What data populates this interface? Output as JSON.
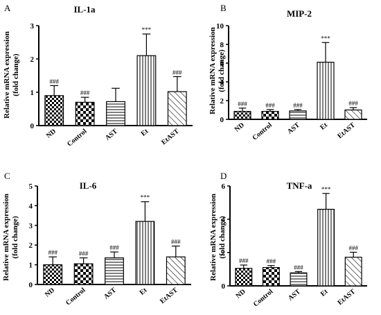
{
  "chart_data": [
    {
      "panel": "A",
      "type": "bar",
      "title": "IL-1a",
      "ylabel": [
        "Relative mRNA expression",
        "(fold change)"
      ],
      "categories": [
        "ND",
        "Control",
        "AST",
        "Et",
        "EtAST"
      ],
      "values": [
        0.9,
        0.7,
        0.72,
        2.1,
        1.02
      ],
      "errors": [
        0.3,
        0.15,
        0.4,
        0.65,
        0.45
      ],
      "annotations": [
        "###",
        "###",
        "",
        "***",
        "###"
      ],
      "ylim": [
        0,
        3
      ],
      "yticks": [
        0,
        1,
        2,
        3
      ]
    },
    {
      "panel": "B",
      "type": "bar",
      "title": "MIP-2",
      "ylabel": [
        "Relative mRNA expression",
        "(fold change)"
      ],
      "categories": [
        "ND",
        "Control",
        "AST",
        "Et",
        "EtAST"
      ],
      "values": [
        0.85,
        0.85,
        0.9,
        6.1,
        1.0
      ],
      "errors": [
        0.35,
        0.2,
        0.15,
        2.1,
        0.25
      ],
      "annotations": [
        "###",
        "###",
        "###",
        "***",
        "###"
      ],
      "ylim": [
        0,
        10
      ],
      "yticks": [
        0,
        2,
        4,
        6,
        8,
        10
      ]
    },
    {
      "panel": "C",
      "type": "bar",
      "title": "IL-6",
      "ylabel": [
        "Relative mRNA expression",
        "(fold change)"
      ],
      "categories": [
        "ND",
        "Control",
        "AST",
        "Et",
        "EtAST"
      ],
      "values": [
        1.0,
        1.05,
        1.35,
        3.2,
        1.4
      ],
      "errors": [
        0.4,
        0.3,
        0.3,
        1.0,
        0.55
      ],
      "annotations": [
        "###",
        "###",
        "###",
        "***",
        "###"
      ],
      "ylim": [
        0,
        5
      ],
      "yticks": [
        0,
        1,
        2,
        3,
        4,
        5
      ]
    },
    {
      "panel": "D",
      "type": "bar",
      "title": "TNF-a",
      "ylabel": [
        "Relative mRNA expression",
        "(fold change)"
      ],
      "categories": [
        "ND",
        "Control",
        "AST",
        "Et",
        "EtAST"
      ],
      "values": [
        1.05,
        1.1,
        0.78,
        4.6,
        1.72
      ],
      "errors": [
        0.2,
        0.12,
        0.08,
        0.95,
        0.3
      ],
      "annotations": [
        "###",
        "###",
        "###",
        "***",
        "###"
      ],
      "ylim": [
        0,
        6
      ],
      "yticks": [
        0,
        2,
        4,
        6
      ]
    }
  ],
  "bar_patterns": [
    "checker-small",
    "checker-large",
    "horizontal-lines",
    "vertical-lines",
    "diagonal-lines"
  ],
  "colors": {
    "bar_stroke": "#000000",
    "background": "#ffffff"
  }
}
